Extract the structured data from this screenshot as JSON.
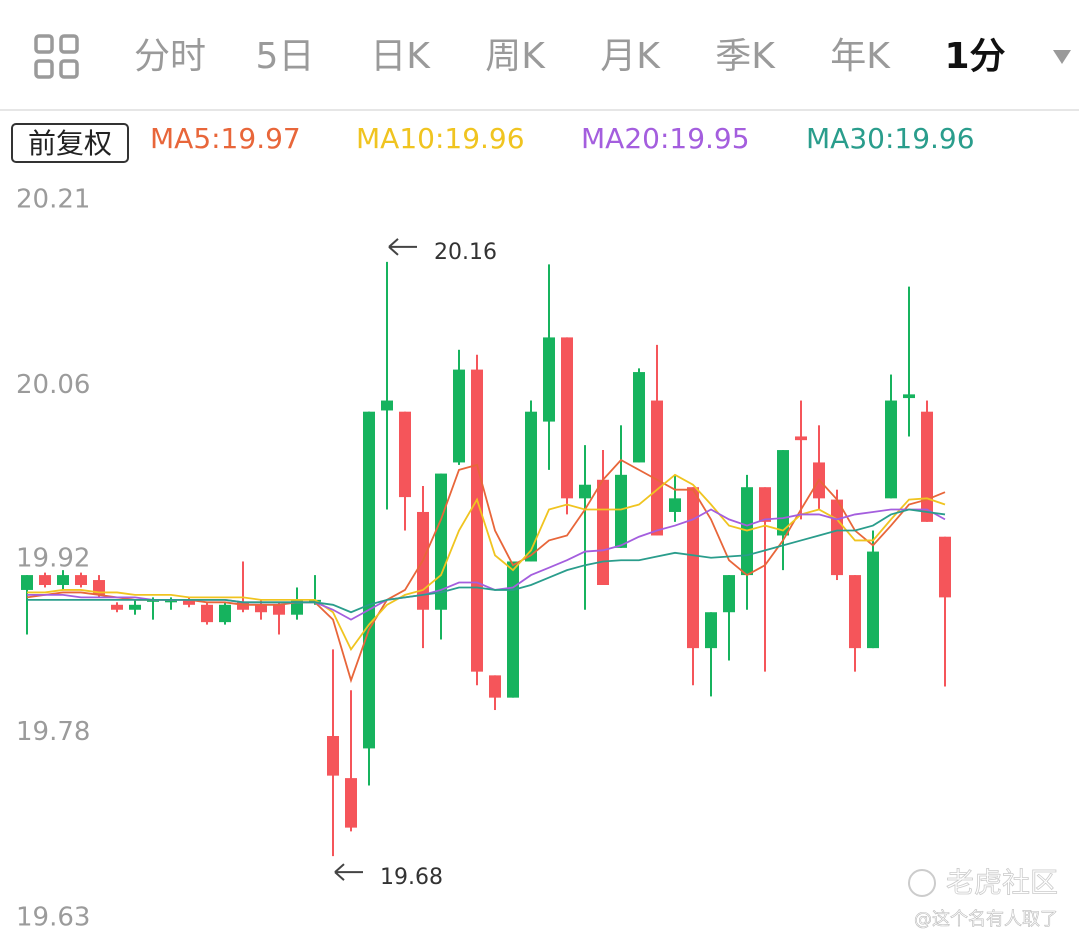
{
  "chart_data": {
    "type": "candlestick",
    "tabs": [
      {
        "label": "分时",
        "active": false
      },
      {
        "label": "5日",
        "active": false
      },
      {
        "label": "日K",
        "active": false
      },
      {
        "label": "周K",
        "active": false
      },
      {
        "label": "月K",
        "active": false
      },
      {
        "label": "季K",
        "active": false
      },
      {
        "label": "年K",
        "active": false
      },
      {
        "label": "1分",
        "active": true
      }
    ],
    "adjustment": "前复权",
    "up_color": "#16b35e",
    "down_color": "#f5555a",
    "ylim": [
      19.63,
      20.21
    ],
    "yticks": [
      20.21,
      20.06,
      19.92,
      19.78,
      19.63
    ],
    "grid": false,
    "high_label": 20.16,
    "low_label": 19.68,
    "candles": {
      "open": [
        19.895,
        19.907,
        19.899,
        19.907,
        19.903,
        19.883,
        19.879,
        19.887,
        19.885,
        19.887,
        19.883,
        19.869,
        19.885,
        19.883,
        19.883,
        19.875,
        19.887,
        19.777,
        19.743,
        19.767,
        20.04,
        20.039,
        19.958,
        19.879,
        19.998,
        20.073,
        19.826,
        19.808,
        19.918,
        20.031,
        20.099,
        19.969,
        19.984,
        19.929,
        19.998,
        20.048,
        19.958,
        19.978,
        19.848,
        19.877,
        19.907,
        19.978,
        19.939,
        20.019,
        19.998,
        19.968,
        19.907,
        19.848,
        19.969,
        20.05,
        20.039,
        19.938
      ],
      "high": [
        19.907,
        19.909,
        19.911,
        19.909,
        19.907,
        19.885,
        19.887,
        19.889,
        19.889,
        19.889,
        19.885,
        19.885,
        19.918,
        19.887,
        19.885,
        19.897,
        19.907,
        19.847,
        19.814,
        20.039,
        20.16,
        20.039,
        19.979,
        19.989,
        20.089,
        20.085,
        19.826,
        19.918,
        20.048,
        20.158,
        20.099,
        20.012,
        20.008,
        20.028,
        20.074,
        20.093,
        19.988,
        19.978,
        19.877,
        19.907,
        19.988,
        19.978,
        20.008,
        20.048,
        20.028,
        19.976,
        19.907,
        19.943,
        20.069,
        20.14,
        20.048,
        19.938
      ],
      "low": [
        19.859,
        19.897,
        19.895,
        19.897,
        19.889,
        19.877,
        19.875,
        19.871,
        19.879,
        19.881,
        19.867,
        19.867,
        19.877,
        19.871,
        19.859,
        19.871,
        19.883,
        19.68,
        19.7,
        19.737,
        19.96,
        19.943,
        19.848,
        19.855,
        19.996,
        19.818,
        19.798,
        19.808,
        19.918,
        19.992,
        19.956,
        19.879,
        19.899,
        19.929,
        19.998,
        19.939,
        19.95,
        19.818,
        19.809,
        19.838,
        19.879,
        19.829,
        19.911,
        19.952,
        19.96,
        19.903,
        19.829,
        19.848,
        19.969,
        20.019,
        19.95,
        19.817
      ],
      "close": [
        19.907,
        19.899,
        19.907,
        19.899,
        19.891,
        19.879,
        19.883,
        19.887,
        19.887,
        19.883,
        19.869,
        19.883,
        19.879,
        19.877,
        19.875,
        19.887,
        19.887,
        19.745,
        19.703,
        20.039,
        20.048,
        19.97,
        19.879,
        19.989,
        20.073,
        19.829,
        19.808,
        19.918,
        20.039,
        20.099,
        19.969,
        19.98,
        19.899,
        19.988,
        20.071,
        19.939,
        19.969,
        19.848,
        19.877,
        19.907,
        19.978,
        19.95,
        20.008,
        20.016,
        19.969,
        19.907,
        19.848,
        19.926,
        20.048,
        20.053,
        19.95,
        19.889
      ]
    },
    "series": [
      {
        "name": "MA5:19.97",
        "color": "#e8663a",
        "values": [
          19.889,
          19.891,
          19.893,
          19.893,
          19.891,
          19.889,
          19.887,
          19.887,
          19.887,
          19.887,
          19.885,
          19.885,
          19.883,
          19.883,
          19.883,
          19.885,
          19.885,
          19.871,
          19.822,
          19.863,
          19.887,
          19.895,
          19.919,
          19.952,
          19.992,
          19.996,
          19.943,
          19.915,
          19.923,
          19.935,
          19.939,
          19.96,
          19.984,
          20.0,
          19.992,
          19.984,
          19.976,
          19.976,
          19.952,
          19.919,
          19.907,
          19.915,
          19.935,
          19.96,
          19.984,
          19.968,
          19.943,
          19.931,
          19.947,
          19.964,
          19.968,
          19.974
        ]
      },
      {
        "name": "MA10:19.96",
        "color": "#f0c420",
        "values": [
          19.893,
          19.893,
          19.895,
          19.895,
          19.893,
          19.893,
          19.891,
          19.891,
          19.891,
          19.889,
          19.889,
          19.889,
          19.889,
          19.887,
          19.887,
          19.887,
          19.887,
          19.877,
          19.847,
          19.867,
          19.883,
          19.891,
          19.895,
          19.907,
          19.943,
          19.968,
          19.923,
          19.911,
          19.927,
          19.96,
          19.964,
          19.96,
          19.96,
          19.96,
          19.964,
          19.976,
          19.988,
          19.98,
          19.964,
          19.947,
          19.943,
          19.947,
          19.943,
          19.956,
          19.96,
          19.952,
          19.935,
          19.935,
          19.952,
          19.968,
          19.969,
          19.964
        ]
      },
      {
        "name": "MA20:19.95",
        "color": "#a45ede",
        "values": [
          19.891,
          19.891,
          19.891,
          19.889,
          19.889,
          19.889,
          19.889,
          19.887,
          19.887,
          19.887,
          19.887,
          19.887,
          19.885,
          19.885,
          19.885,
          19.885,
          19.885,
          19.879,
          19.871,
          19.879,
          19.887,
          19.889,
          19.891,
          19.895,
          19.901,
          19.901,
          19.895,
          19.897,
          19.907,
          19.913,
          19.919,
          19.926,
          19.927,
          19.931,
          19.938,
          19.943,
          19.947,
          19.952,
          19.96,
          19.952,
          19.947,
          19.952,
          19.953,
          19.956,
          19.956,
          19.952,
          19.956,
          19.958,
          19.96,
          19.96,
          19.96,
          19.952
        ]
      },
      {
        "name": "MA30:19.96",
        "color": "#2a9d8c",
        "values": [
          19.887,
          19.887,
          19.887,
          19.887,
          19.887,
          19.887,
          19.887,
          19.887,
          19.887,
          19.887,
          19.887,
          19.887,
          19.885,
          19.885,
          19.885,
          19.885,
          19.885,
          19.883,
          19.877,
          19.883,
          19.887,
          19.889,
          19.891,
          19.893,
          19.897,
          19.897,
          19.895,
          19.895,
          19.899,
          19.905,
          19.911,
          19.915,
          19.918,
          19.919,
          19.919,
          19.922,
          19.925,
          19.923,
          19.921,
          19.922,
          19.923,
          19.927,
          19.931,
          19.935,
          19.939,
          19.943,
          19.943,
          19.947,
          19.956,
          19.96,
          19.958,
          19.956
        ]
      }
    ]
  },
  "watermark": {
    "brand": "老虎社区",
    "user": "@这个名有人取了"
  }
}
